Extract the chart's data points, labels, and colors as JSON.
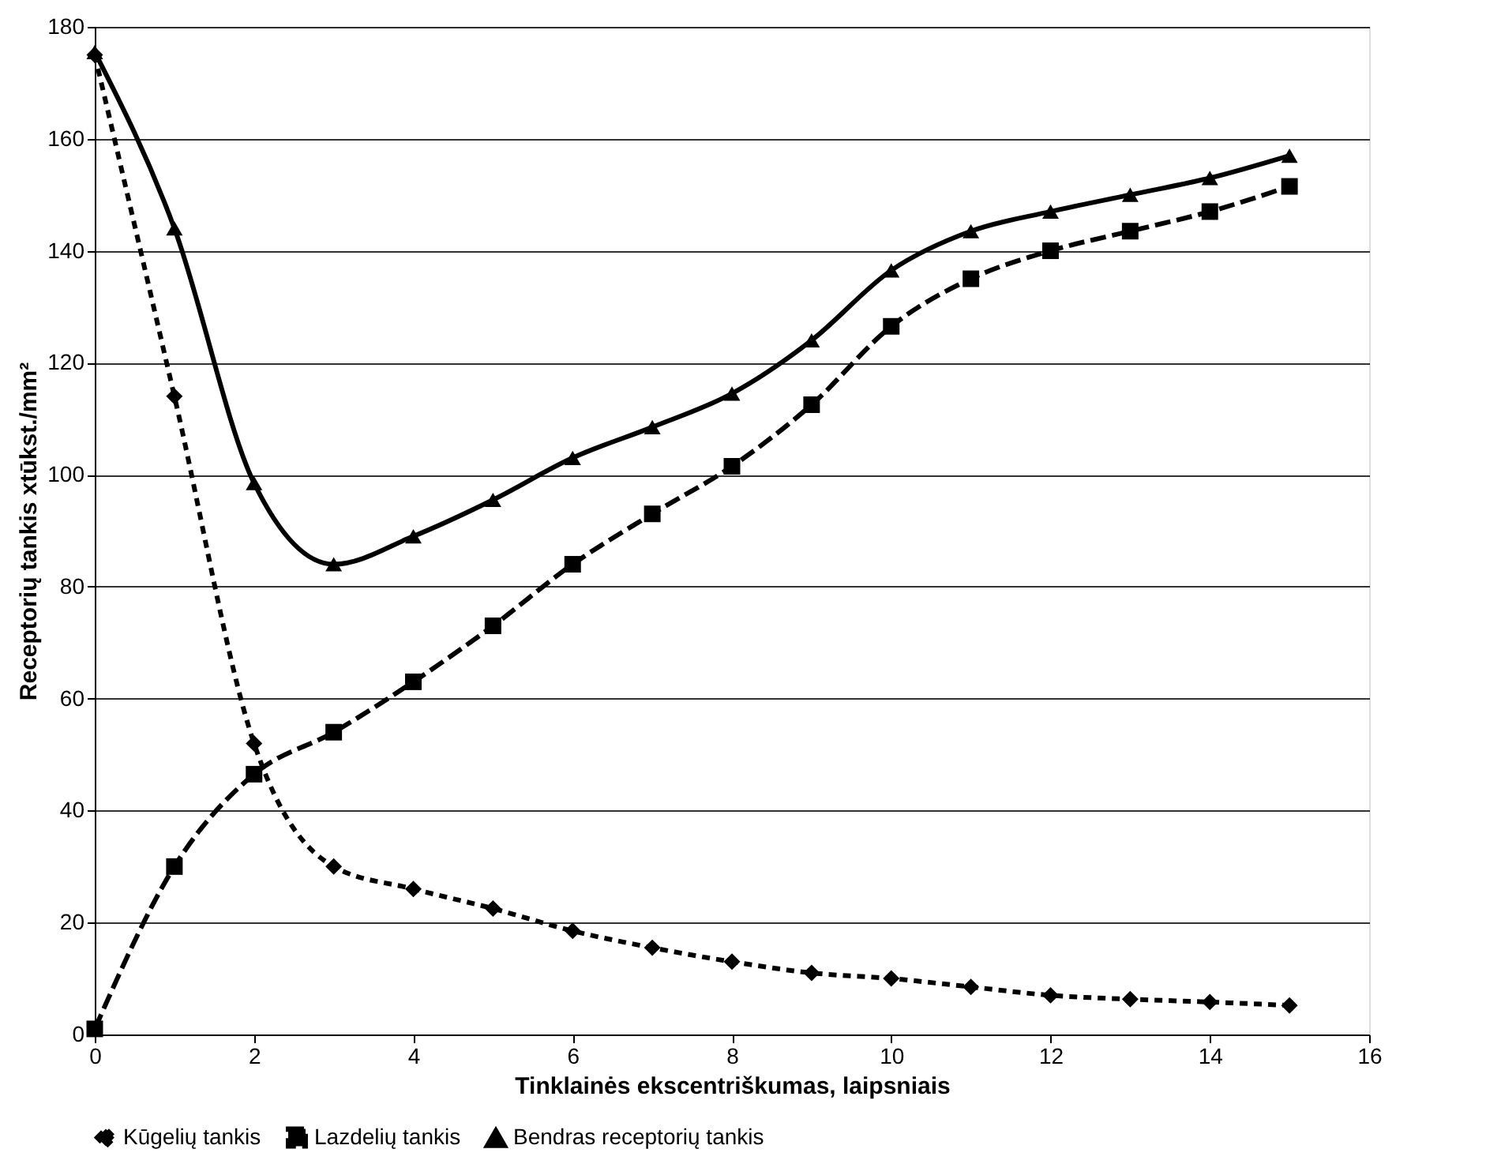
{
  "chart_data": {
    "type": "line",
    "xlabel": "Tinklainės ekscentriškumas, laipsniais",
    "ylabel": "Receptorių tankis xtūkst./mm²",
    "x": [
      0,
      1,
      2,
      3,
      4,
      5,
      6,
      7,
      8,
      9,
      10,
      11,
      12,
      13,
      14,
      15
    ],
    "series": [
      {
        "name": "Kūgelių tankis",
        "color": "#000000",
        "marker": "diamond",
        "line_style": "dashed",
        "values": [
          175,
          114,
          52,
          30,
          26,
          22.5,
          18.5,
          15.5,
          13,
          11,
          10,
          8.5,
          7,
          6.3,
          5.8,
          5.2
        ]
      },
      {
        "name": "Lazdelių tankis",
        "color": "#000000",
        "marker": "square",
        "line_style": "dashed",
        "values": [
          1,
          30,
          46.5,
          54,
          63,
          73,
          84,
          93,
          101.5,
          112.5,
          126.5,
          135,
          140,
          143.5,
          147,
          151.5
        ]
      },
      {
        "name": "Bendras receptorių tankis",
        "color": "#000000",
        "marker": "triangle",
        "line_style": "solid",
        "values": [
          175.5,
          144,
          98.5,
          84,
          89,
          95.5,
          103,
          108.5,
          114.5,
          124,
          136.5,
          143.5,
          147,
          150,
          153,
          157
        ]
      }
    ],
    "xlim": [
      0,
      16
    ],
    "xticks": [
      0,
      2,
      4,
      6,
      8,
      10,
      12,
      14,
      16
    ],
    "ylim": [
      0,
      180
    ],
    "yticks": [
      0,
      20,
      40,
      60,
      80,
      100,
      120,
      140,
      160,
      180
    ],
    "grid": "y",
    "legend": "bottom"
  }
}
